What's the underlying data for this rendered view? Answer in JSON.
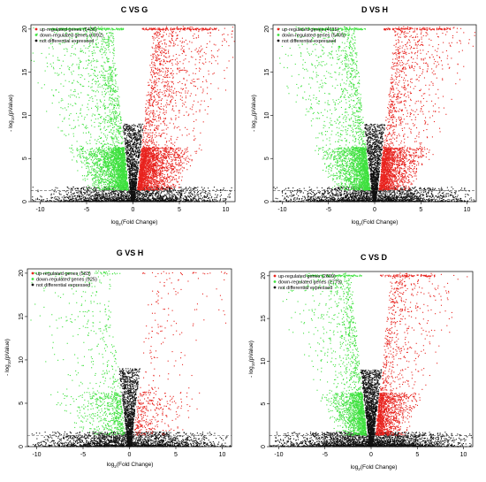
{
  "colors": {
    "up": "#e8231e",
    "down": "#3fe13f",
    "nd": "#111111",
    "threshold_line": "#555555"
  },
  "chart_data": [
    {
      "type": "scatter",
      "title": "C VS G",
      "xlabel_parts": [
        "log",
        "2",
        "(Fold Change)"
      ],
      "ylabel_parts": [
        "- log",
        "10",
        "(pValue)"
      ],
      "xlim": [
        -11,
        11
      ],
      "ylim": [
        0,
        20.5
      ],
      "xticks": [
        -10,
        -5,
        0,
        5,
        10
      ],
      "yticks": [
        0,
        5,
        10,
        15,
        20
      ],
      "legend_position": "top-left",
      "legend": [
        {
          "label": "up-regulated genes (5430)",
          "color": "up"
        },
        {
          "label": "down-regulated genes (6392)",
          "color": "down"
        },
        {
          "label": "not differential expressed",
          "color": "nd"
        }
      ],
      "threshold_y": 1.3,
      "density": {
        "up": 1.3,
        "down": 1.3,
        "nd": 1.0,
        "spread": 1.0
      }
    },
    {
      "type": "scatter",
      "title": "D VS H",
      "xlabel_parts": [
        "log",
        "2",
        "(Fold Change)"
      ],
      "ylabel_parts": [
        "- log",
        "10",
        "(pValue)"
      ],
      "xlim": [
        -11,
        11
      ],
      "ylim": [
        0,
        20.5
      ],
      "xticks": [
        -10,
        -5,
        0,
        5,
        10
      ],
      "yticks": [
        0,
        5,
        10,
        15,
        20
      ],
      "legend_position": "top-left",
      "legend": [
        {
          "label": "up-regulated genes (4115)",
          "color": "up"
        },
        {
          "label": "down-regulated genes (5405)",
          "color": "down"
        },
        {
          "label": "not differential expressed",
          "color": "nd"
        }
      ],
      "threshold_y": 1.3,
      "density": {
        "up": 1.0,
        "down": 1.1,
        "nd": 1.0,
        "spread": 0.9
      }
    },
    {
      "type": "scatter",
      "title": "G VS H",
      "xlabel_parts": [
        "log",
        "2",
        "(Fold Change)"
      ],
      "ylabel_parts": [
        "- log",
        "10",
        "(pValue)"
      ],
      "xlim": [
        -11,
        11
      ],
      "ylim": [
        0,
        20.5
      ],
      "xticks": [
        -10,
        -5,
        0,
        5,
        10
      ],
      "yticks": [
        0,
        5,
        10,
        15,
        20
      ],
      "legend_position": "top-left",
      "legend": [
        {
          "label": "up-regulated genes (583)",
          "color": "up"
        },
        {
          "label": "down-regulated genes (925)",
          "color": "down"
        },
        {
          "label": "not differential expressed",
          "color": "nd"
        }
      ],
      "threshold_y": 1.3,
      "density": {
        "up": 0.18,
        "down": 0.35,
        "nd": 1.0,
        "spread": 1.2
      }
    },
    {
      "type": "scatter",
      "title": "C VS D",
      "xlabel_parts": [
        "log",
        "2",
        "(Fold Change)"
      ],
      "ylabel_parts": [
        "- log",
        "10",
        "(pValue)"
      ],
      "xlim": [
        -11,
        11
      ],
      "ylim": [
        0,
        20.5
      ],
      "xticks": [
        -10,
        -5,
        0,
        5,
        10
      ],
      "yticks": [
        0,
        5,
        10,
        15,
        20
      ],
      "legend_position": "top-left",
      "legend": [
        {
          "label": "up-regulated genes (2609)",
          "color": "up"
        },
        {
          "label": "down-regulated genes (2779)",
          "color": "down"
        },
        {
          "label": "not differential expressed",
          "color": "nd"
        }
      ],
      "threshold_y": 1.3,
      "density": {
        "up": 0.75,
        "down": 0.8,
        "nd": 1.3,
        "spread": 0.75
      }
    }
  ]
}
